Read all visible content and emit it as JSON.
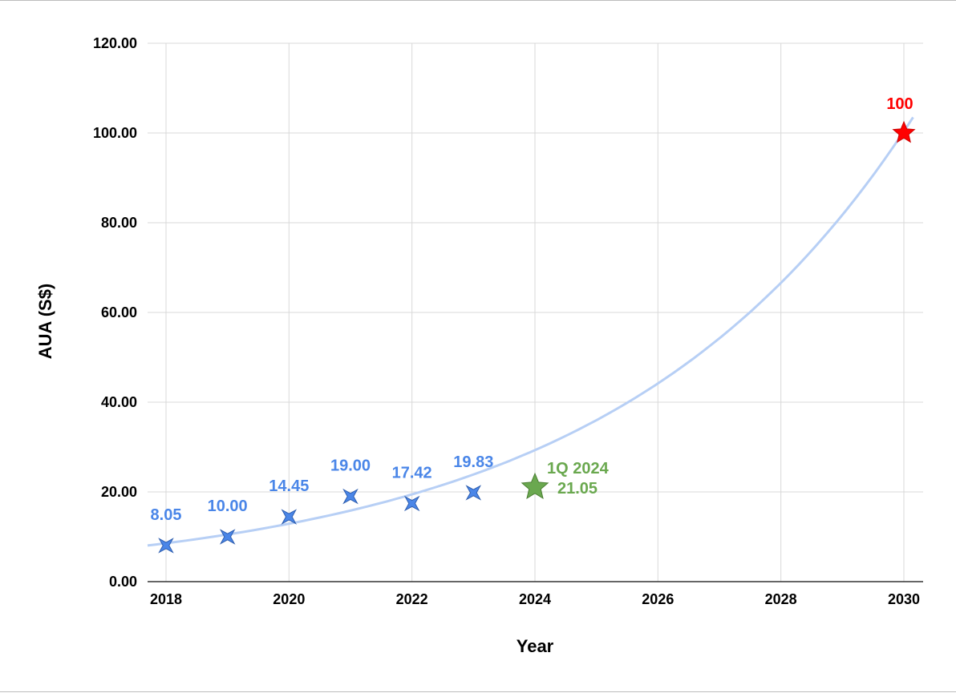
{
  "chart_data": {
    "type": "scatter",
    "title": "",
    "xlabel": "Year",
    "ylabel": "AUA (S$)",
    "xlim": [
      2018,
      2030
    ],
    "ylim": [
      0,
      120
    ],
    "grid": true,
    "x_ticks": [
      "2018",
      "2020",
      "2022",
      "2024",
      "2026",
      "2028",
      "2030"
    ],
    "y_ticks": [
      "0.00",
      "20.00",
      "40.00",
      "60.00",
      "80.00",
      "100.00",
      "120.00"
    ],
    "series": [
      {
        "color": "#4a86e8",
        "marker": "cross-star",
        "points": [
          {
            "x": 2018,
            "y": 8.05,
            "label": "8.05"
          },
          {
            "x": 2019,
            "y": 10.0,
            "label": "10.00"
          },
          {
            "x": 2020,
            "y": 14.45,
            "label": "14.45"
          },
          {
            "x": 2021,
            "y": 19.0,
            "label": "19.00"
          },
          {
            "x": 2022,
            "y": 17.42,
            "label": "17.42"
          },
          {
            "x": 2023,
            "y": 19.83,
            "label": "19.83"
          }
        ]
      },
      {
        "color": "#6aa84f",
        "marker": "star",
        "points": [
          {
            "x": 2024,
            "y": 21.05,
            "label_line1": "1Q 2024",
            "label_line2": "21.05"
          }
        ]
      },
      {
        "color": "#ff0000",
        "marker": "star",
        "points": [
          {
            "x": 2030,
            "y": 100,
            "label": "100"
          }
        ]
      }
    ],
    "trendline": {
      "type": "exponential",
      "color": "#b7cff5",
      "x_start": 2017.7,
      "y_start": 8.05,
      "x_end": 2030.15,
      "y_end": 103.5
    }
  }
}
